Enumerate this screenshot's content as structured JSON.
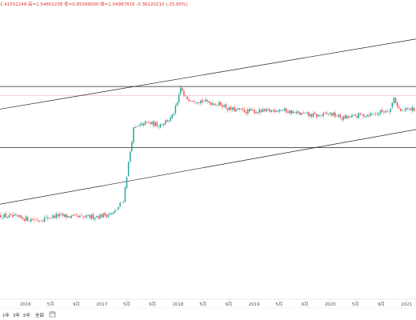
{
  "legend": {
    "ohlc_text": "1.41552248 高=1.54802238 低=0.85599000 收=1.04987816 -0.36220210 (-25.65%)"
  },
  "controls": {
    "periods": [
      "1年",
      "3年",
      "5年",
      "全部"
    ],
    "calendar_icon": "calendar-icon"
  },
  "colors": {
    "up": "#26a69a",
    "down": "#ef5350",
    "line": "#222222",
    "ref_line": "#f2b8b8",
    "background": "#ffffff"
  },
  "chart_data": {
    "type": "candlestick",
    "title": "",
    "xlabel": "",
    "ylabel": "",
    "x_tick_labels": [
      "2016",
      "5月",
      "9月",
      "2017",
      "5月",
      "9月",
      "2018",
      "5月",
      "9月",
      "2019",
      "5月",
      "9月",
      "2020",
      "5月",
      "9月",
      "2021"
    ],
    "x_tick_dates": [
      "2016-01-01",
      "2016-05-01",
      "2016-09-01",
      "2017-01-01",
      "2017-05-01",
      "2017-09-01",
      "2018-01-01",
      "2018-05-01",
      "2018-09-01",
      "2019-01-01",
      "2019-05-01",
      "2019-09-01",
      "2020-01-01",
      "2020-05-01",
      "2020-09-01",
      "2021-01-01"
    ],
    "series_points": [
      {
        "date": "2015-09-01",
        "close": 0.5
      },
      {
        "date": "2015-12-01",
        "close": 0.49
      },
      {
        "date": "2016-03-01",
        "close": 0.48
      },
      {
        "date": "2016-06-01",
        "close": 0.5
      },
      {
        "date": "2016-10-01",
        "close": 0.49
      },
      {
        "date": "2017-01-01",
        "close": 0.5
      },
      {
        "date": "2017-03-01",
        "close": 0.51
      },
      {
        "date": "2017-04-15",
        "close": 0.57
      },
      {
        "date": "2017-05-01",
        "close": 0.68
      },
      {
        "date": "2017-06-01",
        "close": 0.88
      },
      {
        "date": "2017-08-01",
        "close": 0.91
      },
      {
        "date": "2017-10-01",
        "close": 0.9
      },
      {
        "date": "2017-12-01",
        "close": 0.93
      },
      {
        "date": "2017-12-31",
        "close": 1.0
      },
      {
        "date": "2018-01-15",
        "close": 1.07
      },
      {
        "date": "2018-02-01",
        "close": 1.02
      },
      {
        "date": "2018-04-01",
        "close": 1.01
      },
      {
        "date": "2018-06-01",
        "close": 1.0
      },
      {
        "date": "2018-08-01",
        "close": 0.99
      },
      {
        "date": "2018-09-01",
        "close": 0.97
      },
      {
        "date": "2018-12-01",
        "close": 0.96
      },
      {
        "date": "2019-03-01",
        "close": 0.96
      },
      {
        "date": "2019-05-01",
        "close": 0.97
      },
      {
        "date": "2019-08-01",
        "close": 0.95
      },
      {
        "date": "2019-11-01",
        "close": 0.94
      },
      {
        "date": "2020-01-01",
        "close": 0.95
      },
      {
        "date": "2020-03-01",
        "close": 0.93
      },
      {
        "date": "2020-05-01",
        "close": 0.94
      },
      {
        "date": "2020-08-01",
        "close": 0.95
      },
      {
        "date": "2020-10-15",
        "close": 0.97
      },
      {
        "date": "2020-11-01",
        "close": 1.02
      },
      {
        "date": "2020-12-01",
        "close": 0.96
      },
      {
        "date": "2021-01-15",
        "close": 0.97
      }
    ],
    "reference_lines": [
      {
        "kind": "horizontal",
        "value": 1.07
      },
      {
        "kind": "horizontal",
        "value": 1.03
      },
      {
        "kind": "horizontal",
        "value": 0.8
      },
      {
        "kind": "trend",
        "from": {
          "date": "2015-09-01",
          "value": 0.97
        },
        "to": {
          "date": "2021-02-15",
          "value": 1.28
        }
      },
      {
        "kind": "trend",
        "from": {
          "date": "2015-09-01",
          "value": 0.55
        },
        "to": {
          "date": "2021-02-15",
          "value": 0.88
        }
      }
    ],
    "xlim": [
      "2015-09-01",
      "2021-02-15"
    ],
    "ylim": [
      0.13,
      1.41
    ],
    "grid": false,
    "legend_position": "top-left"
  }
}
